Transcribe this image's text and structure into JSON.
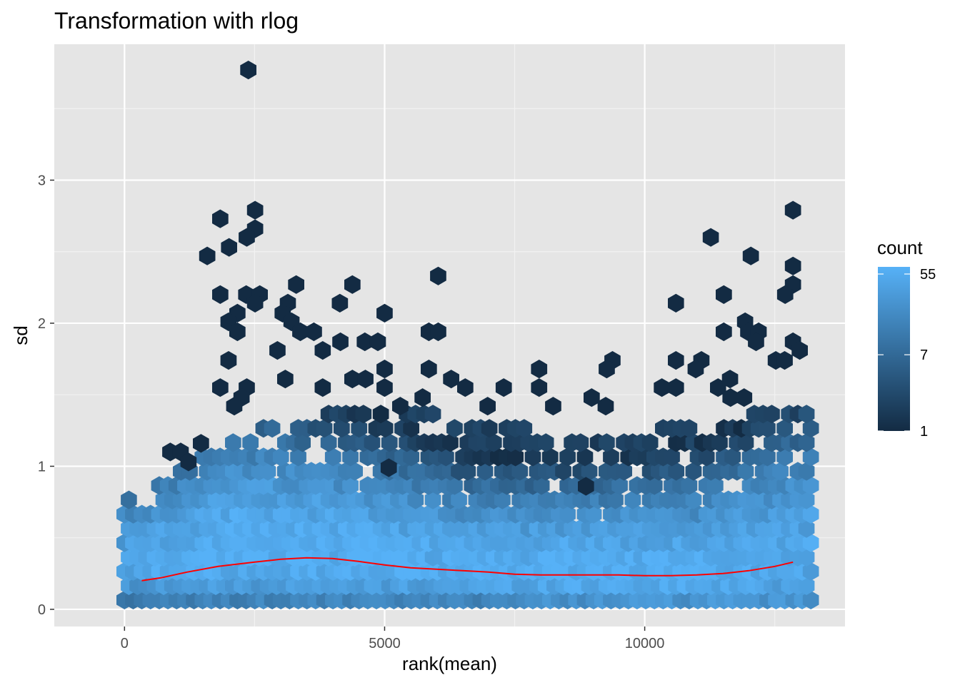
{
  "chart_data": {
    "type": "hexbin",
    "title": "Transformation with rlog",
    "xlabel": "rank(mean)",
    "ylabel": "sd",
    "xlim": [
      -1350,
      13850
    ],
    "ylim": [
      -0.12,
      3.95
    ],
    "xticks": [
      0,
      5000,
      10000
    ],
    "xtick_labels": [
      "0",
      "5000",
      "10000"
    ],
    "xminor": [
      2500,
      7500,
      12500
    ],
    "yticks": [
      0,
      1,
      2,
      3
    ],
    "ytick_labels": [
      "0",
      "1",
      "2",
      "3"
    ],
    "yminor": [
      0.5,
      1.5,
      2.5,
      3.5
    ],
    "background": "#e5e5e5",
    "grid": true,
    "legend": {
      "title": "count",
      "position": "right",
      "breaks": [
        55,
        7,
        1
      ],
      "break_labels": [
        "55",
        "7",
        "1"
      ],
      "scale": "log",
      "low_color": "#132b43",
      "high_color": "#56b1f7",
      "max_count": 66
    },
    "trend_line": {
      "color": "#ff0000",
      "x": [
        330,
        700,
        1200,
        1800,
        2500,
        3000,
        3500,
        4000,
        4500,
        5000,
        5500,
        6000,
        6500,
        7000,
        7500,
        8000,
        8500,
        9000,
        9500,
        10000,
        10500,
        11000,
        11500,
        12000,
        12500,
        12850
      ],
      "y": [
        0.2,
        0.22,
        0.26,
        0.3,
        0.33,
        0.35,
        0.36,
        0.355,
        0.335,
        0.31,
        0.29,
        0.28,
        0.27,
        0.26,
        0.245,
        0.24,
        0.24,
        0.24,
        0.24,
        0.235,
        0.235,
        0.24,
        0.25,
        0.27,
        0.3,
        0.33
      ]
    },
    "hexbin_density": {
      "x_step": 167,
      "y_step": 0.1,
      "x_range": [
        0,
        13200
      ],
      "center_sd": [
        0.28,
        0.38,
        0.34,
        0.27,
        0.24,
        0.24,
        0.3
      ],
      "core_spread_sd": [
        0.28,
        0.42,
        0.38,
        0.3,
        0.3,
        0.32,
        0.46
      ],
      "tail_extent_sd": [
        0.75,
        1.25,
        1.4,
        1.35,
        1.2,
        1.3,
        1.45
      ],
      "peak_count": [
        45,
        66,
        60,
        55,
        62,
        58,
        50
      ]
    },
    "outlier_hexes": [
      [
        2380,
        3.77
      ],
      [
        2510,
        2.79
      ],
      [
        12850,
        2.79
      ],
      [
        1840,
        2.73
      ],
      [
        2510,
        2.66
      ],
      [
        2350,
        2.6
      ],
      [
        11270,
        2.6
      ],
      [
        2010,
        2.53
      ],
      [
        1590,
        2.47
      ],
      [
        12040,
        2.47
      ],
      [
        12850,
        2.4
      ],
      [
        6030,
        2.33
      ],
      [
        3300,
        2.27
      ],
      [
        4380,
        2.27
      ],
      [
        12850,
        2.27
      ],
      [
        1840,
        2.2
      ],
      [
        2340,
        2.2
      ],
      [
        2600,
        2.2
      ],
      [
        11520,
        2.2
      ],
      [
        12700,
        2.2
      ],
      [
        2510,
        2.14
      ],
      [
        3140,
        2.14
      ],
      [
        4140,
        2.14
      ],
      [
        10600,
        2.14
      ],
      [
        2170,
        2.07
      ],
      [
        3040,
        2.07
      ],
      [
        5000,
        2.07
      ],
      [
        2000,
        2.01
      ],
      [
        3210,
        2.01
      ],
      [
        11930,
        2.01
      ],
      [
        2170,
        1.94
      ],
      [
        3380,
        1.94
      ],
      [
        3640,
        1.94
      ],
      [
        5850,
        1.94
      ],
      [
        6030,
        1.94
      ],
      [
        11520,
        1.94
      ],
      [
        11990,
        1.94
      ],
      [
        12190,
        1.94
      ],
      [
        4150,
        1.87
      ],
      [
        4620,
        1.87
      ],
      [
        4870,
        1.87
      ],
      [
        12140,
        1.87
      ],
      [
        12850,
        1.87
      ],
      [
        2940,
        1.81
      ],
      [
        3810,
        1.81
      ],
      [
        12980,
        1.81
      ],
      [
        2000,
        1.74
      ],
      [
        9380,
        1.74
      ],
      [
        10600,
        1.74
      ],
      [
        11090,
        1.74
      ],
      [
        12520,
        1.74
      ],
      [
        12690,
        1.74
      ],
      [
        5000,
        1.68
      ],
      [
        5850,
        1.68
      ],
      [
        7970,
        1.68
      ],
      [
        9270,
        1.68
      ],
      [
        10980,
        1.68
      ],
      [
        3090,
        1.61
      ],
      [
        4380,
        1.61
      ],
      [
        4630,
        1.61
      ],
      [
        6280,
        1.61
      ],
      [
        11640,
        1.61
      ],
      [
        1840,
        1.55
      ],
      [
        2350,
        1.55
      ],
      [
        3810,
        1.55
      ],
      [
        5000,
        1.55
      ],
      [
        6550,
        1.55
      ],
      [
        7290,
        1.55
      ],
      [
        7970,
        1.55
      ],
      [
        10330,
        1.55
      ],
      [
        10600,
        1.55
      ],
      [
        11410,
        1.55
      ],
      [
        2250,
        1.48
      ],
      [
        5730,
        1.48
      ],
      [
        8980,
        1.48
      ],
      [
        11650,
        1.48
      ],
      [
        11910,
        1.48
      ],
      [
        2110,
        1.42
      ],
      [
        5300,
        1.42
      ],
      [
        8240,
        1.42
      ],
      [
        9250,
        1.42
      ],
      [
        6980,
        1.42
      ],
      [
        1470,
        1.16
      ],
      [
        880,
        1.1
      ],
      [
        1080,
        1.1
      ],
      [
        1230,
        1.03
      ],
      [
        5080,
        0.99
      ],
      [
        8870,
        0.86
      ]
    ]
  }
}
